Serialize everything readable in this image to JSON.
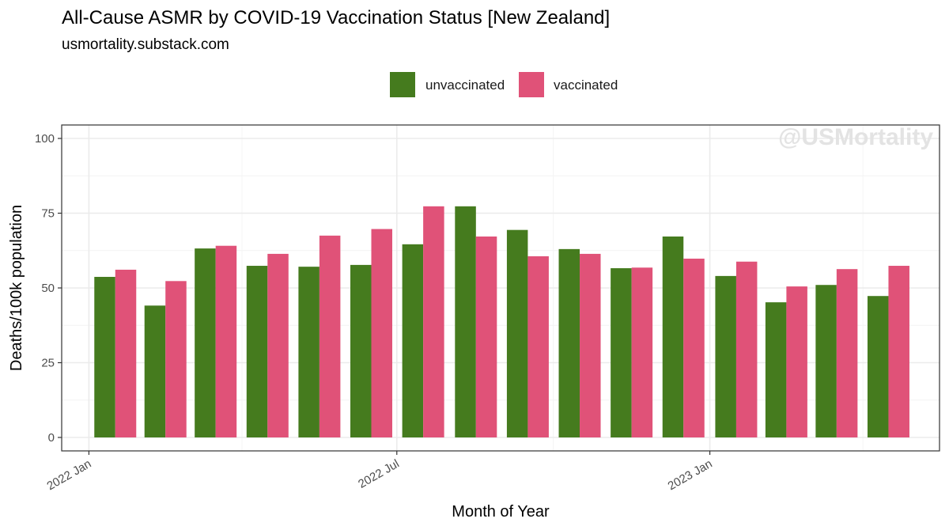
{
  "header": {
    "title": "All-Cause ASMR by COVID-19 Vaccination Status [New Zealand]",
    "subtitle": "usmortality.substack.com"
  },
  "watermark": "@USMortality",
  "colors": {
    "unvaccinated": "#457b1e",
    "vaccinated": "#e05278",
    "grid_major": "#ebebeb",
    "grid_minor": "#f4f4f4",
    "panel_border": "#333333"
  },
  "chart_data": {
    "type": "bar",
    "title": "All-Cause ASMR by COVID-19 Vaccination Status [New Zealand]",
    "subtitle": "usmortality.substack.com",
    "xlabel": "Month of Year",
    "ylabel": "Deaths/100k population",
    "ylim": [
      -4.5,
      104.5
    ],
    "yticks": [
      0,
      25,
      50,
      75,
      100
    ],
    "legend_position": "top",
    "grid": true,
    "x_tick_labels": [
      "2022 Jan",
      "2022 Jul",
      "2023 Jan"
    ],
    "x_tick_dates": [
      "2022-01-01",
      "2022-07-01",
      "2023-01-01"
    ],
    "x_minor_dates": [
      "2022-04-01",
      "2022-10-01",
      "2023-04-01"
    ],
    "x_range": [
      "2021-12-16",
      "2023-05-16"
    ],
    "categories": [
      "2022-01",
      "2022-02",
      "2022-03",
      "2022-04",
      "2022-05",
      "2022-06",
      "2022-07",
      "2022-08",
      "2022-09",
      "2022-10",
      "2022-11",
      "2022-12",
      "2023-01",
      "2023-02",
      "2023-03",
      "2023-04"
    ],
    "series": [
      {
        "name": "unvaccinated",
        "values": [
          53.7,
          44.1,
          63.2,
          57.4,
          57.1,
          57.7,
          64.6,
          77.3,
          69.4,
          63.0,
          56.6,
          67.2,
          54.0,
          45.2,
          51.0,
          47.3
        ]
      },
      {
        "name": "vaccinated",
        "values": [
          56.1,
          52.3,
          64.1,
          61.4,
          67.5,
          69.7,
          77.3,
          67.2,
          60.6,
          61.4,
          56.8,
          59.8,
          58.8,
          50.5,
          56.3,
          57.4
        ]
      }
    ]
  }
}
